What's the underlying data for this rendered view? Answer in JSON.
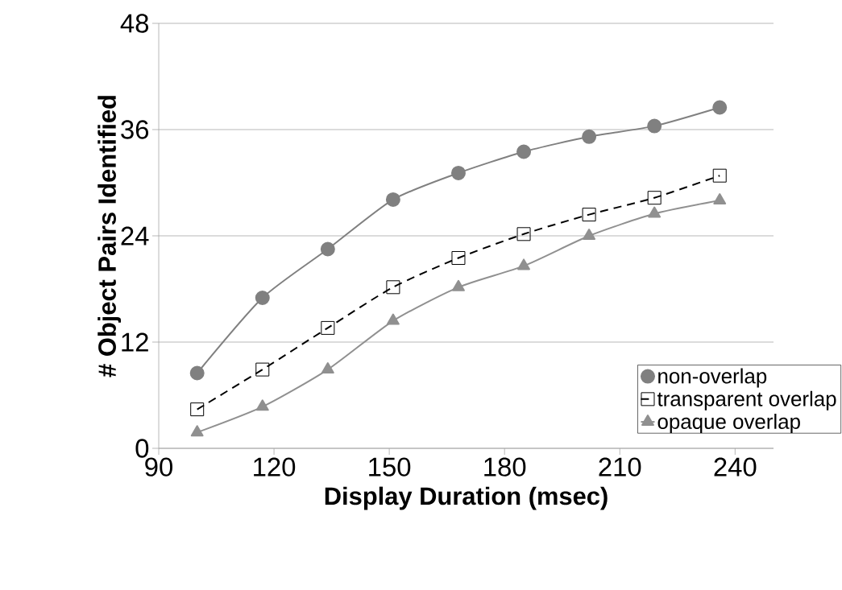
{
  "chart_data": {
    "type": "line",
    "xlabel": "Display Duration (msec)",
    "ylabel": "# Object Pairs  Identified",
    "x": [
      100,
      117,
      134,
      151,
      168,
      185,
      202,
      219,
      236
    ],
    "series": [
      {
        "name": "non-overlap",
        "color": "#808080",
        "marker": "circle",
        "line_style": "solid",
        "values": [
          8.5,
          17,
          22.5,
          28.1,
          31.1,
          33.5,
          35.2,
          36.4,
          38.5
        ]
      },
      {
        "name": "transparent overlap",
        "color": "#000000",
        "marker": "square",
        "line_style": "dashed",
        "values": [
          4.4,
          8.9,
          13.6,
          18.2,
          21.5,
          24.2,
          26.4,
          28.3,
          30.8
        ]
      },
      {
        "name": "opaque overlap",
        "color": "#909090",
        "marker": "triangle",
        "line_style": "solid",
        "values": [
          1.8,
          4.7,
          8.9,
          14.4,
          18.2,
          20.6,
          24,
          26.5,
          28
        ]
      }
    ],
    "xlim": [
      90,
      250
    ],
    "xticks": [
      90,
      120,
      150,
      180,
      210,
      240
    ],
    "ylim": [
      0,
      48
    ],
    "yticks": [
      0,
      12,
      24,
      36,
      48
    ],
    "grid": "y",
    "legend": "bottom right"
  }
}
